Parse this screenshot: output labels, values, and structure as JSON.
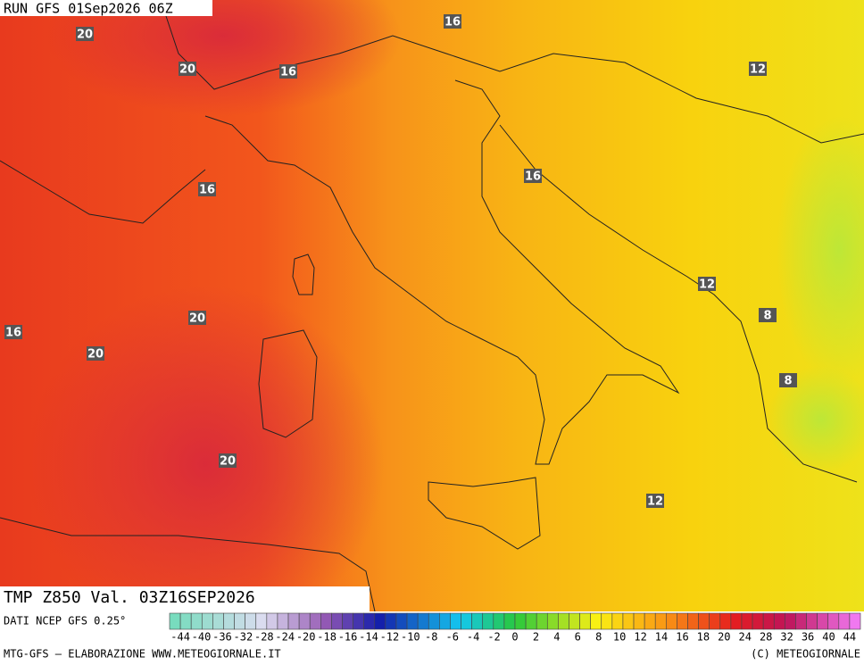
{
  "header": {
    "run": "RUN GFS 01Sep2026 06Z",
    "field": "TMP Z850 Val. 03Z16SEP2026"
  },
  "map": {
    "contour_labels": [
      "20",
      "20",
      "16",
      "16",
      "12",
      "16",
      "16",
      "12",
      "8",
      "16",
      "20",
      "20",
      "8",
      "20",
      "12"
    ]
  },
  "colorbar": {
    "source": "DATI NCEP GFS 0.25°",
    "ticks": [
      -44,
      -40,
      -36,
      -32,
      -28,
      -24,
      -20,
      -18,
      -16,
      -14,
      -12,
      -10,
      -8,
      -6,
      -4,
      -2,
      0,
      2,
      4,
      6,
      8,
      10,
      12,
      14,
      16,
      18,
      20,
      24,
      28,
      32,
      36,
      40,
      44
    ]
  },
  "footer": {
    "credit": "MTG-GFS — ELABORAZIONE WWW.METEOGIORNALE.IT",
    "copyright": "(C) METEOGIORNALE"
  }
}
